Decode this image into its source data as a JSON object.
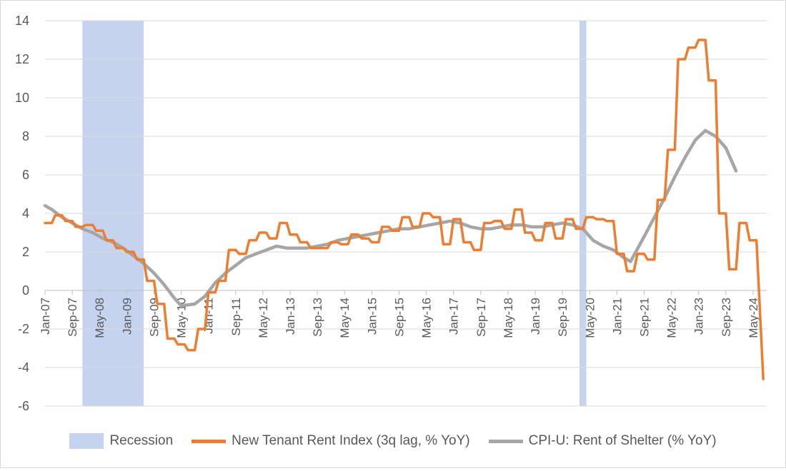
{
  "chart_data": {
    "type": "line",
    "title": "",
    "xlabel": "",
    "ylabel": "",
    "ylim": [
      -6,
      14
    ],
    "yticks": [
      -6,
      -4,
      -2,
      0,
      2,
      4,
      6,
      8,
      10,
      12,
      14
    ],
    "xlim": [
      "2007-01",
      "2024-09"
    ],
    "xticks": [
      "Jan-07",
      "Sep-07",
      "May-08",
      "Jan-09",
      "Sep-09",
      "May-10",
      "Jan-11",
      "Sep-11",
      "May-12",
      "Jan-13",
      "Sep-13",
      "May-14",
      "Jan-15",
      "Sep-15",
      "May-16",
      "Jan-17",
      "Sep-17",
      "May-18",
      "Jan-19",
      "Sep-19",
      "May-20",
      "Jan-21",
      "Sep-21",
      "May-22",
      "Jan-23",
      "Sep-23",
      "May-24"
    ],
    "grid": "horizontal",
    "legend_position": "bottom",
    "recessions": [
      {
        "start": "2007-12",
        "end": "2009-06"
      },
      {
        "start": "2020-02",
        "end": "2020-04"
      }
    ],
    "series": [
      {
        "name": "Recession",
        "kind": "band",
        "color": "#c5d3ee"
      },
      {
        "name": "New Tenant Rent Index (3q lag, % YoY)",
        "kind": "line",
        "color": "#ed7d31",
        "points": [
          [
            "2007-01",
            3.5
          ],
          [
            "2007-03",
            3.5
          ],
          [
            "2007-04",
            3.9
          ],
          [
            "2007-06",
            3.9
          ],
          [
            "2007-07",
            3.6
          ],
          [
            "2007-09",
            3.6
          ],
          [
            "2007-10",
            3.3
          ],
          [
            "2007-12",
            3.3
          ],
          [
            "2008-01",
            3.4
          ],
          [
            "2008-03",
            3.4
          ],
          [
            "2008-04",
            3.1
          ],
          [
            "2008-06",
            3.1
          ],
          [
            "2008-07",
            2.6
          ],
          [
            "2008-09",
            2.6
          ],
          [
            "2008-10",
            2.2
          ],
          [
            "2008-12",
            2.2
          ],
          [
            "2009-01",
            2.0
          ],
          [
            "2009-03",
            2.0
          ],
          [
            "2009-04",
            1.6
          ],
          [
            "2009-06",
            1.6
          ],
          [
            "2009-07",
            0.5
          ],
          [
            "2009-09",
            0.5
          ],
          [
            "2009-10",
            -0.7
          ],
          [
            "2009-12",
            -0.7
          ],
          [
            "2010-01",
            -2.5
          ],
          [
            "2010-03",
            -2.5
          ],
          [
            "2010-04",
            -2.8
          ],
          [
            "2010-06",
            -2.8
          ],
          [
            "2010-07",
            -3.1
          ],
          [
            "2010-09",
            -3.1
          ],
          [
            "2010-10",
            -2.0
          ],
          [
            "2010-12",
            -2.0
          ],
          [
            "2011-01",
            -0.1
          ],
          [
            "2011-03",
            -0.1
          ],
          [
            "2011-04",
            0.5
          ],
          [
            "2011-06",
            0.5
          ],
          [
            "2011-07",
            2.1
          ],
          [
            "2011-09",
            2.1
          ],
          [
            "2011-10",
            1.9
          ],
          [
            "2011-12",
            1.9
          ],
          [
            "2012-01",
            2.6
          ],
          [
            "2012-03",
            2.6
          ],
          [
            "2012-04",
            3.0
          ],
          [
            "2012-06",
            3.0
          ],
          [
            "2012-07",
            2.7
          ],
          [
            "2012-09",
            2.7
          ],
          [
            "2012-10",
            3.5
          ],
          [
            "2012-12",
            3.5
          ],
          [
            "2013-01",
            2.9
          ],
          [
            "2013-03",
            2.9
          ],
          [
            "2013-04",
            2.5
          ],
          [
            "2013-06",
            2.5
          ],
          [
            "2013-07",
            2.2
          ],
          [
            "2013-09",
            2.2
          ],
          [
            "2013-10",
            2.2
          ],
          [
            "2013-12",
            2.2
          ],
          [
            "2014-01",
            2.5
          ],
          [
            "2014-03",
            2.5
          ],
          [
            "2014-04",
            2.4
          ],
          [
            "2014-06",
            2.4
          ],
          [
            "2014-07",
            2.9
          ],
          [
            "2014-09",
            2.9
          ],
          [
            "2014-10",
            2.7
          ],
          [
            "2014-12",
            2.7
          ],
          [
            "2015-01",
            2.5
          ],
          [
            "2015-03",
            2.5
          ],
          [
            "2015-04",
            3.3
          ],
          [
            "2015-06",
            3.3
          ],
          [
            "2015-07",
            3.1
          ],
          [
            "2015-09",
            3.1
          ],
          [
            "2015-10",
            3.8
          ],
          [
            "2015-12",
            3.8
          ],
          [
            "2016-01",
            3.3
          ],
          [
            "2016-03",
            3.3
          ],
          [
            "2016-04",
            4.0
          ],
          [
            "2016-06",
            4.0
          ],
          [
            "2016-07",
            3.8
          ],
          [
            "2016-09",
            3.8
          ],
          [
            "2016-10",
            2.4
          ],
          [
            "2016-12",
            2.4
          ],
          [
            "2017-01",
            3.7
          ],
          [
            "2017-03",
            3.7
          ],
          [
            "2017-04",
            2.5
          ],
          [
            "2017-06",
            2.5
          ],
          [
            "2017-07",
            2.1
          ],
          [
            "2017-09",
            2.1
          ],
          [
            "2017-10",
            3.5
          ],
          [
            "2017-12",
            3.5
          ],
          [
            "2018-01",
            3.6
          ],
          [
            "2018-03",
            3.6
          ],
          [
            "2018-04",
            3.2
          ],
          [
            "2018-06",
            3.2
          ],
          [
            "2018-07",
            4.2
          ],
          [
            "2018-09",
            4.2
          ],
          [
            "2018-10",
            3.0
          ],
          [
            "2018-12",
            3.0
          ],
          [
            "2019-01",
            2.6
          ],
          [
            "2019-03",
            2.6
          ],
          [
            "2019-04",
            3.5
          ],
          [
            "2019-06",
            3.5
          ],
          [
            "2019-07",
            2.7
          ],
          [
            "2019-09",
            2.7
          ],
          [
            "2019-10",
            3.7
          ],
          [
            "2019-12",
            3.7
          ],
          [
            "2020-01",
            3.2
          ],
          [
            "2020-03",
            3.2
          ],
          [
            "2020-04",
            3.8
          ],
          [
            "2020-06",
            3.8
          ],
          [
            "2020-07",
            3.7
          ],
          [
            "2020-09",
            3.7
          ],
          [
            "2020-10",
            3.6
          ],
          [
            "2020-12",
            3.6
          ],
          [
            "2021-01",
            1.9
          ],
          [
            "2021-03",
            1.9
          ],
          [
            "2021-04",
            1.0
          ],
          [
            "2021-06",
            1.0
          ],
          [
            "2021-07",
            1.9
          ],
          [
            "2021-09",
            1.9
          ],
          [
            "2021-10",
            1.6
          ],
          [
            "2021-12",
            1.6
          ],
          [
            "2022-01",
            4.7
          ],
          [
            "2022-03",
            4.7
          ],
          [
            "2022-04",
            7.3
          ],
          [
            "2022-06",
            7.3
          ],
          [
            "2022-07",
            12.0
          ],
          [
            "2022-09",
            12.0
          ],
          [
            "2022-10",
            12.6
          ],
          [
            "2022-12",
            12.6
          ],
          [
            "2023-01",
            13.0
          ],
          [
            "2023-03",
            13.0
          ],
          [
            "2023-04",
            10.9
          ],
          [
            "2023-06",
            10.9
          ],
          [
            "2023-07",
            4.0
          ],
          [
            "2023-09",
            4.0
          ],
          [
            "2023-10",
            1.1
          ],
          [
            "2023-12",
            1.1
          ],
          [
            "2024-01",
            3.5
          ],
          [
            "2024-03",
            3.5
          ],
          [
            "2024-04",
            2.6
          ],
          [
            "2024-06",
            2.6
          ],
          [
            "2024-08",
            -4.6
          ]
        ]
      },
      {
        "name": "CPI-U: Rent of Shelter (% YoY)",
        "kind": "line",
        "color": "#a6a6a6",
        "points": [
          [
            "2007-01",
            4.4
          ],
          [
            "2007-03",
            4.2
          ],
          [
            "2007-06",
            3.8
          ],
          [
            "2007-09",
            3.5
          ],
          [
            "2007-12",
            3.2
          ],
          [
            "2008-03",
            3.0
          ],
          [
            "2008-06",
            2.7
          ],
          [
            "2008-09",
            2.5
          ],
          [
            "2008-12",
            2.2
          ],
          [
            "2009-03",
            1.8
          ],
          [
            "2009-06",
            1.4
          ],
          [
            "2009-09",
            0.9
          ],
          [
            "2009-12",
            0.3
          ],
          [
            "2010-03",
            -0.4
          ],
          [
            "2010-05",
            -0.8
          ],
          [
            "2010-09",
            -0.7
          ],
          [
            "2010-12",
            -0.3
          ],
          [
            "2011-03",
            0.4
          ],
          [
            "2011-06",
            0.9
          ],
          [
            "2011-09",
            1.3
          ],
          [
            "2011-12",
            1.7
          ],
          [
            "2012-03",
            1.9
          ],
          [
            "2012-06",
            2.1
          ],
          [
            "2012-09",
            2.3
          ],
          [
            "2012-12",
            2.2
          ],
          [
            "2013-03",
            2.2
          ],
          [
            "2013-06",
            2.2
          ],
          [
            "2013-09",
            2.3
          ],
          [
            "2013-12",
            2.4
          ],
          [
            "2014-03",
            2.6
          ],
          [
            "2014-06",
            2.7
          ],
          [
            "2014-09",
            2.8
          ],
          [
            "2014-12",
            2.9
          ],
          [
            "2015-03",
            3.0
          ],
          [
            "2015-06",
            3.1
          ],
          [
            "2015-09",
            3.2
          ],
          [
            "2015-12",
            3.2
          ],
          [
            "2016-03",
            3.3
          ],
          [
            "2016-06",
            3.4
          ],
          [
            "2016-09",
            3.5
          ],
          [
            "2016-12",
            3.6
          ],
          [
            "2017-03",
            3.5
          ],
          [
            "2017-06",
            3.3
          ],
          [
            "2017-09",
            3.2
          ],
          [
            "2017-12",
            3.2
          ],
          [
            "2018-03",
            3.3
          ],
          [
            "2018-06",
            3.4
          ],
          [
            "2018-09",
            3.4
          ],
          [
            "2018-12",
            3.3
          ],
          [
            "2019-03",
            3.3
          ],
          [
            "2019-06",
            3.4
          ],
          [
            "2019-09",
            3.5
          ],
          [
            "2019-12",
            3.4
          ],
          [
            "2020-03",
            3.2
          ],
          [
            "2020-06",
            2.6
          ],
          [
            "2020-09",
            2.3
          ],
          [
            "2020-12",
            2.1
          ],
          [
            "2021-03",
            1.7
          ],
          [
            "2021-05",
            1.5
          ],
          [
            "2021-09",
            2.8
          ],
          [
            "2021-12",
            3.8
          ],
          [
            "2022-03",
            4.8
          ],
          [
            "2022-06",
            5.9
          ],
          [
            "2022-09",
            6.9
          ],
          [
            "2022-12",
            7.8
          ],
          [
            "2023-03",
            8.3
          ],
          [
            "2023-06",
            8.0
          ],
          [
            "2023-09",
            7.4
          ],
          [
            "2023-12",
            6.2
          ]
        ]
      }
    ]
  }
}
